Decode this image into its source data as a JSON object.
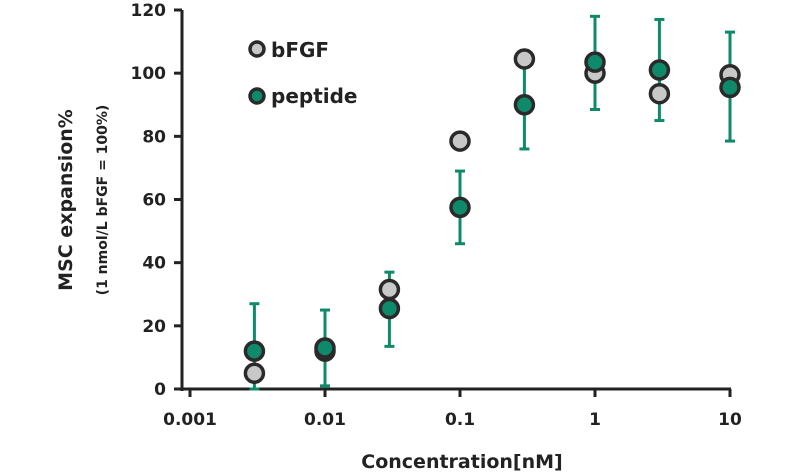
{
  "chart_data": {
    "type": "scatter",
    "title": "",
    "xlabel": "Concentration[nM]",
    "ylabel": "MSC expansion%",
    "ylabel_sub": "(1 nmol/L bFGF = 100%)",
    "xscale": "log",
    "xlim": [
      0.001,
      10
    ],
    "ylim": [
      0,
      120
    ],
    "xticks": [
      0.001,
      0.01,
      0.1,
      1,
      10
    ],
    "xtick_labels": [
      "0.001",
      "0.01",
      "0.1",
      "1",
      "10"
    ],
    "yticks": [
      0,
      20,
      40,
      60,
      80,
      100,
      120
    ],
    "ytick_labels": [
      "0",
      "20",
      "40",
      "60",
      "80",
      "100",
      "120"
    ],
    "grid": false,
    "legend_position": "top-left",
    "x": [
      0.003,
      0.01,
      0.03,
      0.1,
      0.3,
      1,
      3,
      10
    ],
    "series": [
      {
        "name": "bFGF",
        "color": "#c8c8c8",
        "edge_color": "#2a2a2a",
        "values": [
          5,
          12,
          31.5,
          78.5,
          104.5,
          100,
          93.5,
          99.5
        ]
      },
      {
        "name": "peptide",
        "color": "#0e8a6a",
        "edge_color": "#2a2a2a",
        "values": [
          12,
          13,
          25.5,
          57.5,
          90,
          103.5,
          101,
          95.5
        ],
        "error_color": "#0e8a6a",
        "error_low": [
          0,
          1,
          13.5,
          46,
          76,
          88.5,
          85,
          78.5
        ],
        "error_high": [
          27,
          25,
          37,
          69,
          104,
          118,
          117,
          113
        ]
      }
    ]
  }
}
